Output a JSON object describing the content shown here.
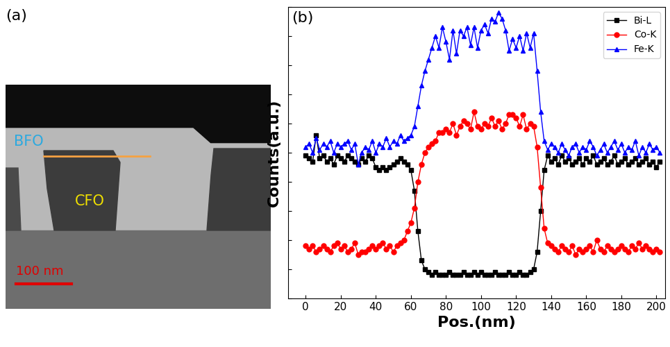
{
  "image_panel": {
    "label": "(a)",
    "layer_labels": [
      "BFO",
      "CFO"
    ],
    "scale_bar": "100 nm"
  },
  "chart_data": {
    "type": "line",
    "panel_label": "(b)",
    "x_label": "Pos.(nm)",
    "y_label": "Counts(a.u.)",
    "x": [
      0,
      2,
      4,
      6,
      8,
      10,
      12,
      14,
      16,
      18,
      20,
      22,
      24,
      26,
      28,
      30,
      32,
      34,
      36,
      38,
      40,
      42,
      44,
      46,
      48,
      50,
      52,
      54,
      56,
      58,
      60,
      62,
      64,
      66,
      68,
      70,
      72,
      74,
      76,
      78,
      80,
      82,
      84,
      86,
      88,
      90,
      92,
      94,
      96,
      98,
      100,
      102,
      104,
      106,
      108,
      110,
      112,
      114,
      116,
      118,
      120,
      122,
      124,
      126,
      128,
      130,
      132,
      134,
      136,
      138,
      140,
      142,
      144,
      146,
      148,
      150,
      152,
      154,
      156,
      158,
      160,
      162,
      164,
      166,
      168,
      170,
      172,
      174,
      176,
      178,
      180,
      182,
      184,
      186,
      188,
      190,
      192,
      194,
      196,
      198,
      200,
      202
    ],
    "series": [
      {
        "name": "Bi-L",
        "color": "#000000",
        "marker": "square",
        "values": [
          4.9,
          4.8,
          4.7,
          5.6,
          4.8,
          4.9,
          4.7,
          4.8,
          4.6,
          4.9,
          4.8,
          4.7,
          4.9,
          4.8,
          4.7,
          4.6,
          4.8,
          4.7,
          4.9,
          4.8,
          4.5,
          4.4,
          4.5,
          4.4,
          4.5,
          4.6,
          4.7,
          4.8,
          4.7,
          4.6,
          4.4,
          3.7,
          2.3,
          1.3,
          1.0,
          0.9,
          0.8,
          0.9,
          0.8,
          0.8,
          0.8,
          0.9,
          0.8,
          0.8,
          0.8,
          0.9,
          0.8,
          0.8,
          0.9,
          0.8,
          0.9,
          0.8,
          0.8,
          0.8,
          0.9,
          0.8,
          0.8,
          0.8,
          0.9,
          0.8,
          0.8,
          0.9,
          0.8,
          0.8,
          0.9,
          1.0,
          1.6,
          3.0,
          4.4,
          4.9,
          4.7,
          4.8,
          4.6,
          4.9,
          4.7,
          4.8,
          4.6,
          4.7,
          4.8,
          4.6,
          4.8,
          4.7,
          4.9,
          4.6,
          4.7,
          4.8,
          4.6,
          4.7,
          4.9,
          4.6,
          4.7,
          4.8,
          4.6,
          4.7,
          4.8,
          4.6,
          4.7,
          4.8,
          4.6,
          4.7,
          4.5,
          4.7
        ]
      },
      {
        "name": "Co-K",
        "color": "#ff0000",
        "marker": "circle",
        "values": [
          1.8,
          1.7,
          1.8,
          1.6,
          1.7,
          1.8,
          1.7,
          1.6,
          1.8,
          1.9,
          1.7,
          1.8,
          1.6,
          1.7,
          1.9,
          1.5,
          1.6,
          1.6,
          1.7,
          1.8,
          1.7,
          1.8,
          1.9,
          1.7,
          1.8,
          1.6,
          1.8,
          1.9,
          2.0,
          2.3,
          2.6,
          3.1,
          4.0,
          4.6,
          5.0,
          5.2,
          5.3,
          5.4,
          5.7,
          5.7,
          5.8,
          5.7,
          6.0,
          5.6,
          5.9,
          6.1,
          6.0,
          5.8,
          6.4,
          5.9,
          5.8,
          6.0,
          5.9,
          6.2,
          5.9,
          6.1,
          5.8,
          6.0,
          6.3,
          6.3,
          6.2,
          5.9,
          6.3,
          5.8,
          6.0,
          5.9,
          5.2,
          3.8,
          2.4,
          1.9,
          1.8,
          1.7,
          1.6,
          1.8,
          1.7,
          1.6,
          1.8,
          1.5,
          1.7,
          1.6,
          1.7,
          1.8,
          1.6,
          2.0,
          1.7,
          1.6,
          1.8,
          1.7,
          1.6,
          1.7,
          1.8,
          1.7,
          1.6,
          1.8,
          1.7,
          1.9,
          1.7,
          1.8,
          1.7,
          1.6,
          1.7,
          1.6
        ]
      },
      {
        "name": "Fe-K",
        "color": "#0000ff",
        "marker": "triangle",
        "values": [
          5.2,
          5.3,
          5.0,
          5.5,
          5.1,
          5.3,
          5.2,
          5.4,
          5.0,
          5.3,
          5.2,
          5.3,
          5.4,
          5.1,
          5.3,
          4.6,
          5.0,
          5.2,
          5.1,
          5.4,
          5.0,
          5.3,
          5.2,
          5.5,
          5.2,
          5.4,
          5.3,
          5.6,
          5.4,
          5.5,
          5.6,
          5.9,
          6.6,
          7.3,
          7.8,
          8.2,
          8.6,
          9.0,
          8.6,
          9.3,
          8.8,
          8.2,
          9.2,
          8.4,
          9.2,
          9.0,
          9.3,
          8.7,
          9.3,
          8.6,
          9.2,
          9.4,
          9.1,
          9.6,
          9.5,
          9.8,
          9.6,
          9.2,
          8.5,
          8.9,
          8.6,
          9.0,
          8.5,
          9.1,
          8.6,
          9.1,
          7.8,
          6.4,
          5.4,
          5.1,
          5.3,
          5.2,
          5.0,
          5.3,
          5.1,
          4.9,
          5.2,
          5.3,
          5.0,
          5.2,
          5.1,
          5.4,
          5.2,
          4.9,
          5.1,
          5.3,
          5.0,
          5.2,
          5.4,
          5.1,
          5.3,
          5.0,
          5.2,
          5.1,
          5.4,
          4.9,
          5.2,
          5.0,
          5.3,
          5.1,
          5.2,
          5.0
        ]
      }
    ],
    "xlim": [
      -10,
      205
    ],
    "xticks": [
      0,
      20,
      40,
      60,
      80,
      100,
      120,
      140,
      160,
      180,
      200
    ],
    "ylim": [
      0,
      10
    ],
    "yticks": [
      0,
      1,
      2,
      3,
      4,
      5,
      6,
      7,
      8,
      9,
      10
    ],
    "legend": "upper right",
    "tick_labels": "x"
  }
}
